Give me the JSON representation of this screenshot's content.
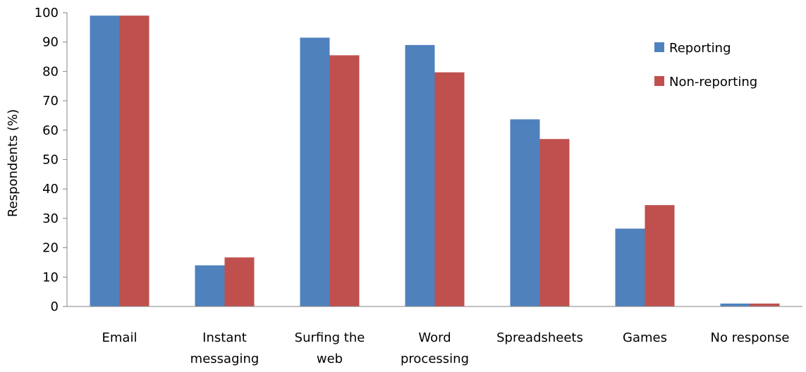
{
  "chart_data": {
    "type": "bar",
    "categories": [
      [
        "Email"
      ],
      [
        "Instant",
        "messaging"
      ],
      [
        "Surfing the",
        "web"
      ],
      [
        "Word",
        "processing"
      ],
      [
        "Spreadsheets"
      ],
      [
        "Games"
      ],
      [
        "No response"
      ]
    ],
    "series": [
      {
        "name": "Reporting",
        "color": "#4F81BD",
        "values": [
          99,
          14,
          91.5,
          89,
          63.7,
          26.5,
          1
        ]
      },
      {
        "name": "Non-reporting",
        "color": "#C0504D",
        "values": [
          99,
          16.7,
          85.5,
          79.7,
          57,
          34.5,
          1
        ]
      }
    ],
    "title": "",
    "xlabel": "",
    "ylabel": "Respondents  (%)",
    "ylim": [
      0,
      100
    ],
    "yticks": [
      0,
      10,
      20,
      30,
      40,
      50,
      60,
      70,
      80,
      90,
      100
    ],
    "grid": false,
    "legend_position": "top-right"
  }
}
